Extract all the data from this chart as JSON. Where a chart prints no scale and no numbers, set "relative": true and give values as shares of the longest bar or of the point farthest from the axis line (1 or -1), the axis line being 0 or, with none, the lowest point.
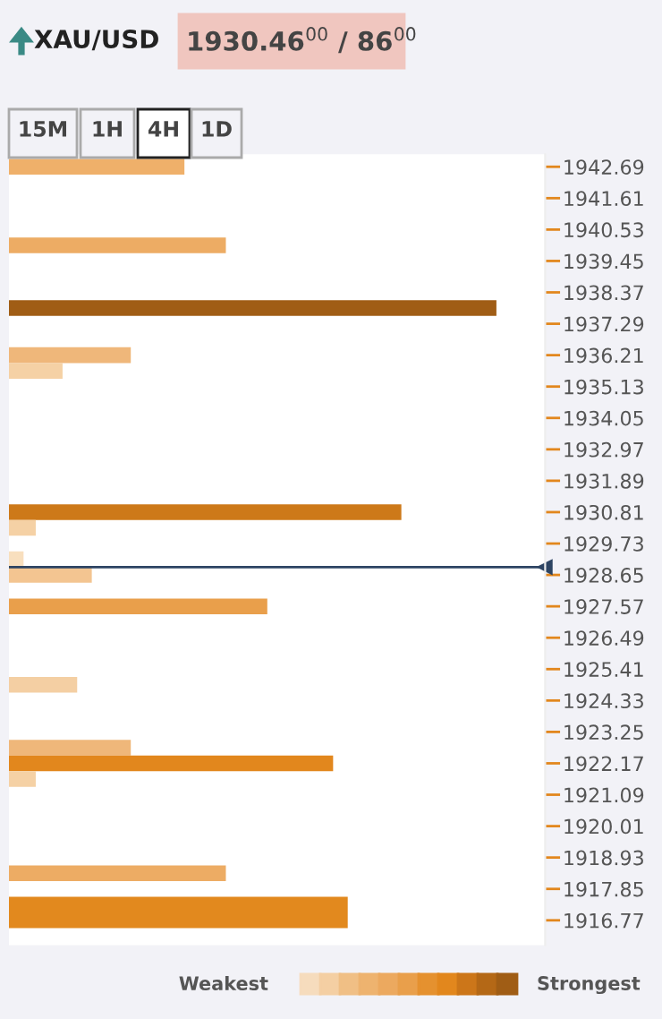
{
  "chart_data": {
    "type": "bar",
    "orientation": "horizontal",
    "relative": true,
    "title": "XAU/USD",
    "subtitle": "1930.46$^{00}$ / 86$^{00}$",
    "annotations": [
      "15M",
      "1H",
      "4H",
      "1D",
      "Weakest",
      "Strongest"
    ],
    "x": [
      1942.69,
      1939.99,
      1937.83,
      1936.21,
      1935.67,
      1930.81,
      1930.27,
      1929.19,
      1928.65,
      1927.57,
      1924.87,
      1922.71,
      1922.17,
      1921.63,
      1918.39,
      1917.31,
      1916.77
    ],
    "values": [
      0.36,
      0.445,
      1,
      0.25,
      0.11,
      0.805,
      0.055,
      0.03,
      0.17,
      0.53,
      0.14,
      0.25,
      0.665,
      0.055,
      0.445,
      0.695,
      0.695
    ],
    "colors": [
      "#efb06a",
      "#edac64",
      "#a05d15",
      "#efb77a",
      "#f5d1a5",
      "#cd7919",
      "#f5d1a5",
      "#f8dfbe",
      "#f3c591",
      "#e99f4b",
      "#f4cfa3",
      "#efb77a",
      "#e2871d",
      "#f5d1a5",
      "#edac64",
      "#e2891e",
      "#e2891e"
    ],
    "ylim": [
      1915.92,
      1943.12
    ],
    "yticks": [
      1942.69,
      1941.61,
      1940.53,
      1939.45,
      1938.37,
      1937.29,
      1936.21,
      1935.13,
      1934.05,
      1932.97,
      1931.89,
      1930.81,
      1929.73,
      1928.65,
      1927.57,
      1926.49,
      1925.41,
      1924.33,
      1923.25,
      1922.17,
      1921.09,
      1920.01,
      1918.93,
      1917.85,
      1916.77
    ],
    "ref_lines": [
      {
        "axis": "y",
        "value": 1928.92,
        "color": "#2d4463"
      }
    ],
    "tick_labels": "y"
  }
}
